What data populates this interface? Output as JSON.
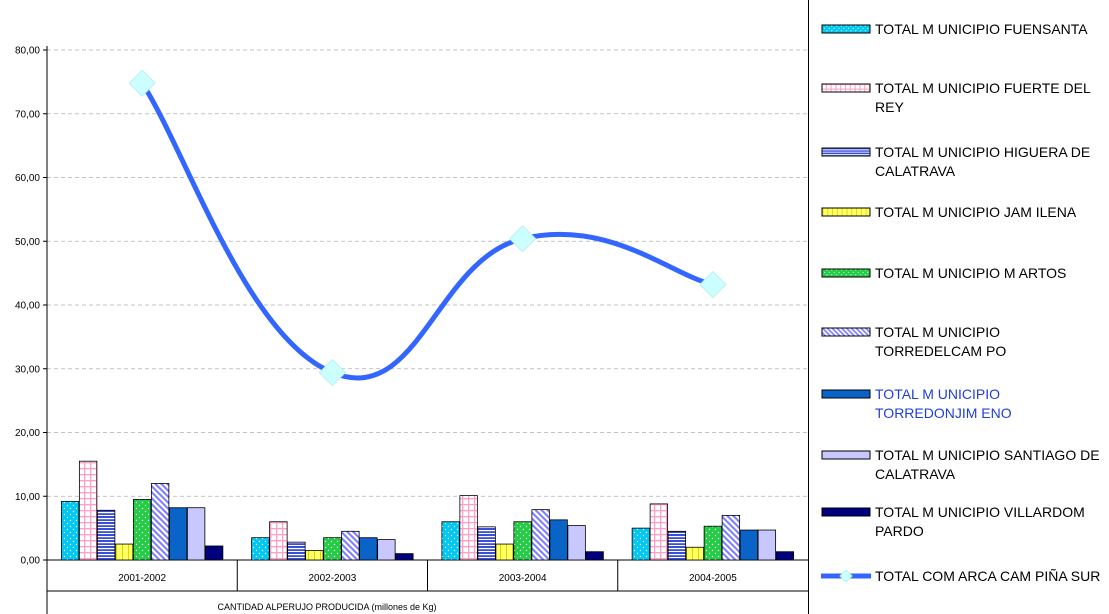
{
  "chart_data": {
    "type": "bar+line",
    "categories": [
      "2001-2002",
      "2002-2003",
      "2003-2004",
      "2004-2005"
    ],
    "xlabel": "CANTIDAD ALPERUJO PRODUCIDA (millones de Kg)",
    "ylabel": "",
    "ylim": [
      0,
      80
    ],
    "yticks": [
      "0,00",
      "10,00",
      "20,00",
      "30,00",
      "40,00",
      "50,00",
      "60,00",
      "70,00",
      "80,00"
    ],
    "grid": true,
    "legend_position": "right",
    "series": [
      {
        "name": "TOTAL M UNICIPIO FUENSANTA",
        "kind": "bar",
        "color": "#00c8f0",
        "pattern": "dots",
        "values": [
          9.2,
          3.5,
          6.0,
          5.0
        ]
      },
      {
        "name": "TOTAL M UNICIPIO FUERTE DEL REY",
        "kind": "bar",
        "color": "#ff9fc8",
        "pattern": "grid",
        "values": [
          15.5,
          6.0,
          10.1,
          8.8
        ]
      },
      {
        "name": "TOTAL M UNICIPIO HIGUERA DE CALATRAVA",
        "kind": "bar",
        "color": "#3a4fd8",
        "pattern": "hlines",
        "values": [
          7.8,
          2.8,
          5.2,
          4.5
        ]
      },
      {
        "name": "TOTAL M UNICIPIO JAM ILENA",
        "kind": "bar",
        "color": "#ffff66",
        "pattern": "vlines",
        "values": [
          2.5,
          1.5,
          2.5,
          2.0
        ]
      },
      {
        "name": "TOTAL M UNICIPIO M ARTOS",
        "kind": "bar",
        "color": "#22cc44",
        "pattern": "dots",
        "values": [
          9.5,
          3.5,
          6.0,
          5.3
        ]
      },
      {
        "name": "TOTAL M UNICIPIO TORREDELCAM PO",
        "kind": "bar",
        "color": "#8080ff",
        "pattern": "diag",
        "values": [
          12.0,
          4.5,
          7.9,
          7.0
        ]
      },
      {
        "name": "TOTAL M UNICIPIO TORREDONJIM ENO",
        "kind": "bar",
        "color": "#0a64c8",
        "pattern": "solid",
        "values": [
          8.2,
          3.5,
          6.3,
          4.7
        ]
      },
      {
        "name": "TOTAL M UNICIPIO SANTIAGO DE CALATRAVA",
        "kind": "bar",
        "color": "#c8c8ff",
        "pattern": "solid",
        "values": [
          8.2,
          3.2,
          5.4,
          4.7
        ]
      },
      {
        "name": "TOTAL M UNICIPIO VILLARDOM PARDO",
        "kind": "bar",
        "color": "#00007f",
        "pattern": "solid",
        "values": [
          2.2,
          1.0,
          1.3,
          1.3
        ]
      },
      {
        "name": "TOTAL COM ARCA CAM PIÑA SUR",
        "kind": "line",
        "color": "#3366ff",
        "marker_color": "#ccffff",
        "values": [
          74.8,
          29.4,
          50.4,
          43.2
        ]
      }
    ]
  },
  "legend": {
    "items": [
      {
        "label": "TOTAL M UNICIPIO FUENSANTA",
        "color": "#00c8f0",
        "pattern": "dots",
        "highlight": false
      },
      {
        "label": "TOTAL M UNICIPIO FUERTE DEL REY",
        "color": "#ff9fc8",
        "pattern": "grid",
        "highlight": false
      },
      {
        "label": "TOTAL M UNICIPIO HIGUERA DE CALATRAVA",
        "color": "#3a4fd8",
        "pattern": "hlines",
        "highlight": false
      },
      {
        "label": "TOTAL M UNICIPIO JAM ILENA",
        "color": "#ffff66",
        "pattern": "vlines",
        "highlight": false
      },
      {
        "label": "TOTAL M UNICIPIO M ARTOS",
        "color": "#22cc44",
        "pattern": "dots",
        "highlight": false
      },
      {
        "label": "TOTAL M UNICIPIO TORREDELCAM PO",
        "color": "#8080ff",
        "pattern": "diag",
        "highlight": false
      },
      {
        "label": "TOTAL M UNICIPIO TORREDONJIM ENO",
        "color": "#0a64c8",
        "pattern": "solid",
        "highlight": true
      },
      {
        "label": "TOTAL M UNICIPIO SANTIAGO DE CALATRAVA",
        "color": "#c8c8ff",
        "pattern": "solid",
        "highlight": false
      },
      {
        "label": "TOTAL M UNICIPIO VILLARDOM PARDO",
        "color": "#00007f",
        "pattern": "solid",
        "highlight": false
      },
      {
        "label": "TOTAL COM ARCA CAM PIÑA SUR",
        "color": "#3366ff",
        "pattern": "line",
        "highlight": false
      }
    ]
  }
}
